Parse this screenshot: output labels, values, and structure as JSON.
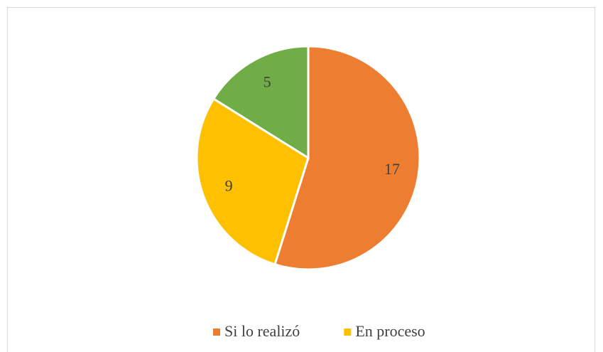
{
  "chart_data": {
    "type": "pie",
    "categories": [
      "Si lo realizó",
      "En proceso",
      null
    ],
    "values": [
      17,
      9,
      5
    ],
    "colors": [
      "#ed7d31",
      "#ffc000",
      "#70ad47"
    ],
    "legend": "bottom"
  }
}
